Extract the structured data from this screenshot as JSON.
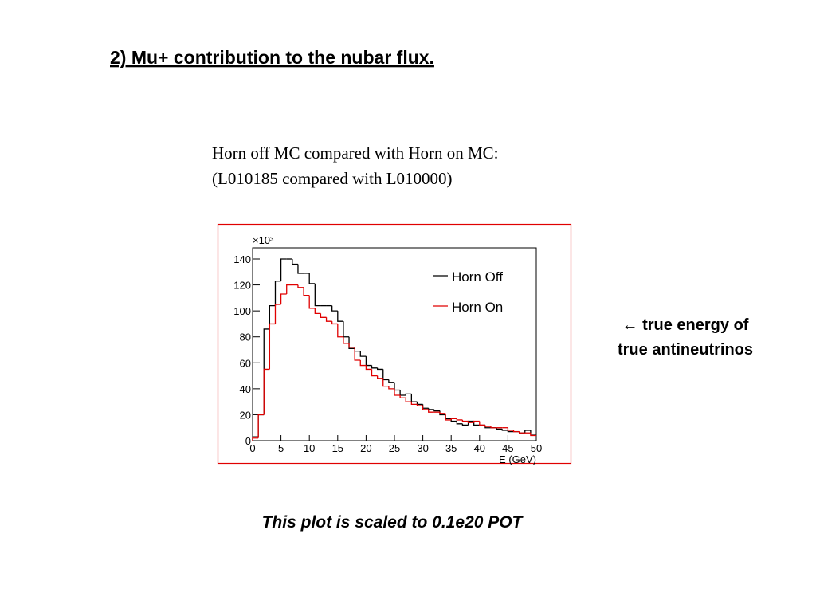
{
  "slide": {
    "title": "2) Mu+ contribution to the nubar flux.",
    "subtitle": [
      "Horn off MC compared with Horn on MC:",
      "(L010185 compared with L010000)"
    ],
    "side_note": [
      "← true energy of",
      "true antineutrinos"
    ],
    "footnote": "This plot is scaled to 0.1e20 POT"
  },
  "chart_data": {
    "type": "histogram",
    "x_label": "E (GeV)",
    "y_multiplier": "×10³",
    "bins": [
      0,
      1,
      2,
      3,
      4,
      5,
      6,
      7,
      8,
      9,
      10,
      11,
      12,
      13,
      14,
      15,
      16,
      17,
      18,
      19,
      20,
      21,
      22,
      23,
      24,
      25,
      26,
      27,
      28,
      29,
      30,
      31,
      32,
      33,
      34,
      35,
      36,
      37,
      38,
      39,
      40,
      41,
      42,
      43,
      44,
      45,
      46,
      47,
      48,
      49,
      50
    ],
    "series": [
      {
        "name": "Horn Off",
        "color": "#000000",
        "values": [
          3,
          20,
          86,
          104,
          123,
          140,
          140,
          136,
          129,
          129,
          121,
          104,
          104,
          104,
          100,
          92,
          80,
          71,
          69,
          65,
          58,
          56,
          55,
          47,
          45,
          39,
          35,
          36,
          30,
          28,
          25,
          24,
          23,
          20,
          17,
          15,
          13,
          12,
          15,
          12,
          12,
          10,
          10,
          9,
          8,
          7,
          7,
          6,
          8,
          5
        ]
      },
      {
        "name": "Horn On",
        "color": "#e00000",
        "values": [
          2,
          20,
          55,
          90,
          105,
          113,
          120,
          120,
          118,
          112,
          102,
          98,
          95,
          92,
          90,
          80,
          75,
          72,
          62,
          58,
          55,
          50,
          48,
          42,
          40,
          35,
          33,
          30,
          28,
          27,
          24,
          22,
          22,
          21,
          16,
          17,
          16,
          15,
          14,
          15,
          12,
          11,
          10,
          10,
          10,
          8,
          7,
          6,
          6,
          4
        ]
      }
    ],
    "xlim": [
      0,
      50
    ],
    "xticks": [
      0,
      5,
      10,
      15,
      20,
      25,
      30,
      35,
      40,
      45,
      50
    ],
    "ylim": [
      0,
      148.6
    ],
    "yticks": [
      0,
      20,
      40,
      60,
      80,
      100,
      120,
      140
    ]
  }
}
